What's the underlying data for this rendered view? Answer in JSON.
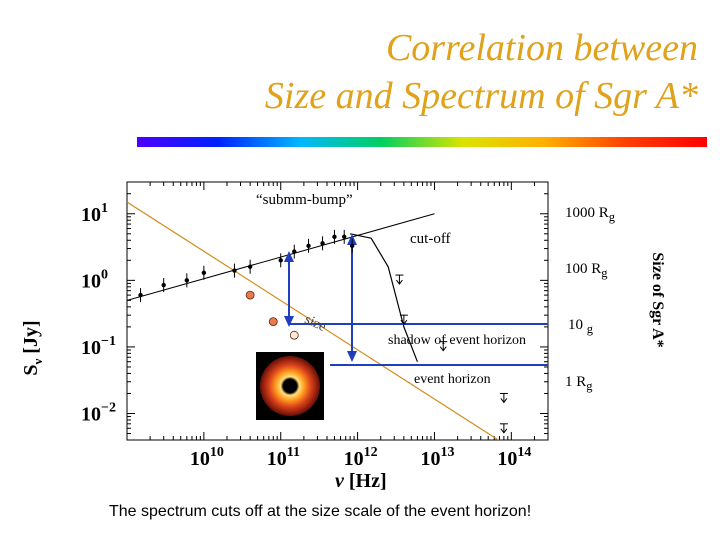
{
  "title": {
    "line1": "Correlation between",
    "line2": "Size and Spectrum of Sgr A*"
  },
  "caption": "The spectrum cuts off at the size scale of the event horizon!",
  "colors": {
    "title": "#e0a21a",
    "blue_lines": "#1f3fbf",
    "orange_line": "#d48a1a",
    "points_fill": "#e87a50"
  },
  "chart_data": {
    "type": "scatter",
    "xlabel_main": "ν",
    "xlabel_unit": "[Hz]",
    "ylabel_main": "S",
    "ylabel_sub": "ν",
    "ylabel_unit": "[Jy]",
    "x_scale": "log",
    "y_scale": "log",
    "xlim": [
      1000000000.0,
      300000000000000.0
    ],
    "ylim": [
      0.004,
      30
    ],
    "x_ticks": [
      {
        "value": 10000000000.0,
        "base": "10",
        "exp": "10"
      },
      {
        "value": 100000000000.0,
        "base": "10",
        "exp": "11"
      },
      {
        "value": 1000000000000.0,
        "base": "10",
        "exp": "12"
      },
      {
        "value": 10000000000000.0,
        "base": "10",
        "exp": "13"
      },
      {
        "value": 100000000000000.0,
        "base": "10",
        "exp": "14"
      }
    ],
    "y_ticks": [
      {
        "value": 10,
        "base": "10",
        "exp": "1"
      },
      {
        "value": 1,
        "base": "10",
        "exp": "0"
      },
      {
        "value": 0.1,
        "base": "10",
        "exp": "−1"
      },
      {
        "value": 0.01,
        "base": "10",
        "exp": "−2"
      }
    ],
    "flux_points": [
      {
        "x": 1500000000.0,
        "y": 0.6
      },
      {
        "x": 3000000000.0,
        "y": 0.85
      },
      {
        "x": 6000000000.0,
        "y": 1.0
      },
      {
        "x": 10000000000.0,
        "y": 1.3
      },
      {
        "x": 25000000000.0,
        "y": 1.4
      },
      {
        "x": 40000000000.0,
        "y": 1.6
      },
      {
        "x": 100000000000.0,
        "y": 2.0
      },
      {
        "x": 150000000000.0,
        "y": 2.7
      },
      {
        "x": 230000000000.0,
        "y": 3.3
      },
      {
        "x": 350000000000.0,
        "y": 3.6
      },
      {
        "x": 500000000000.0,
        "y": 4.5
      },
      {
        "x": 670000000000.0,
        "y": 4.5
      },
      {
        "x": 850000000000.0,
        "y": 3.3
      }
    ],
    "upper_limits": [
      {
        "x": 3500000000000.0,
        "y": 1.2
      },
      {
        "x": 4000000000000.0,
        "y": 0.3
      },
      {
        "x": 13000000000000.0,
        "y": 0.12
      },
      {
        "x": 80000000000000.0,
        "y": 0.02
      },
      {
        "x": 80000000000000.0,
        "y": 0.007
      }
    ],
    "size_points": [
      {
        "x": 40000000000.0,
        "y": 0.6
      },
      {
        "x": 80000000000.0,
        "y": 0.24
      },
      {
        "x": 150000000000.0,
        "y": 0.15
      }
    ],
    "powerlaw_line": {
      "x": [
        1000000000.0,
        10000000000000.0
      ],
      "y": [
        0.5,
        10
      ]
    },
    "cutoff_curve": [
      {
        "x": 800000000000.0,
        "y": 5
      },
      {
        "x": 1500000000000.0,
        "y": 4.3
      },
      {
        "x": 2500000000000.0,
        "y": 1.6
      },
      {
        "x": 4000000000000.0,
        "y": 0.2
      },
      {
        "x": 6000000000000.0,
        "y": 0.06
      }
    ],
    "size_line": {
      "x": [
        1000000000.0,
        100000000000000.0
      ],
      "y": [
        15,
        0.003
      ]
    }
  },
  "annotations": {
    "submm_bump": "“submm-bump”",
    "cut_off": "cut-off",
    "size": "size",
    "shadow": "shadow of event horizon",
    "event_horizon": "event horizon",
    "right_axis_title": "Size of Sgr A*",
    "scale_1000_num": "1000 R",
    "scale_100_num": "100 R",
    "scale_10_num": "10 ",
    "scale_1_num": "1 R",
    "scale_sub": "g"
  }
}
